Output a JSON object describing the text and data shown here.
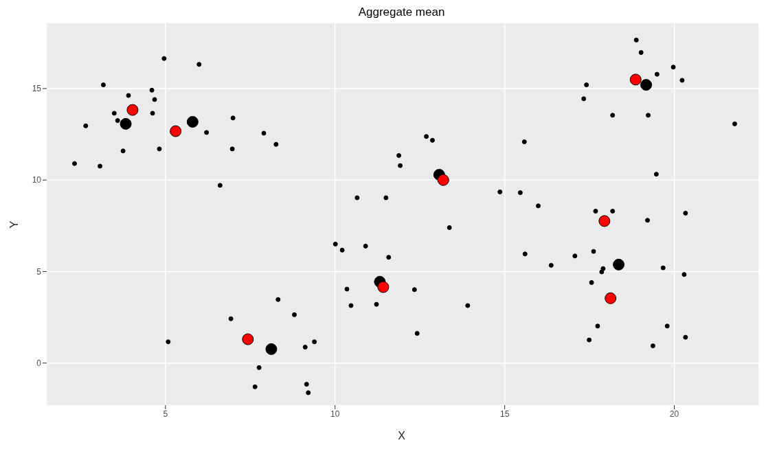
{
  "chart_data": {
    "type": "scatter",
    "title": "Aggregate mean",
    "xlabel": "X",
    "ylabel": "Y",
    "xlim": [
      1.5,
      22.5
    ],
    "ylim": [
      -2.3,
      18.6
    ],
    "xticks": [
      5,
      10,
      15,
      20
    ],
    "yticks": [
      0,
      5,
      10,
      15
    ],
    "grid": true,
    "legend": false,
    "marker": "circle",
    "series": [
      {
        "color": "#000000",
        "x": [
          2.32,
          2.65,
          3.17,
          3.07,
          3.49,
          3.59,
          3.75,
          3.91,
          4.6,
          4.68,
          4.62,
          4.82,
          4.96,
          5.99,
          6.21,
          6.99,
          6.97,
          6.61,
          7.9,
          8.26,
          5.08,
          6.93,
          7.76,
          7.64,
          8.32,
          8.8,
          9.12,
          9.16,
          9.21,
          9.39,
          10.01,
          10.21,
          10.9,
          10.35,
          10.47,
          10.65,
          11.22,
          11.5,
          11.58,
          11.88,
          11.92,
          12.34,
          12.42,
          12.69,
          12.87,
          13.37,
          13.91,
          14.86,
          15.46,
          15.58,
          15.6,
          15.99,
          16.37,
          17.07,
          17.33,
          17.41,
          17.49,
          17.56,
          17.62,
          17.68,
          17.74,
          17.86,
          17.9,
          18.18,
          18.18,
          18.88,
          19.02,
          19.21,
          19.23,
          19.47,
          19.49,
          19.37,
          19.67,
          19.79,
          19.97,
          20.23,
          20.29,
          20.33,
          20.33,
          21.78
        ],
        "values": [
          10.9,
          12.96,
          15.2,
          10.76,
          13.65,
          13.25,
          11.59,
          14.62,
          14.91,
          14.4,
          13.65,
          11.7,
          16.64,
          16.32,
          12.6,
          13.39,
          11.7,
          9.71,
          12.56,
          11.95,
          1.16,
          2.42,
          -0.25,
          -1.3,
          3.47,
          2.64,
          0.87,
          -1.16,
          -1.62,
          1.16,
          6.5,
          6.17,
          6.39,
          4.04,
          3.14,
          9.03,
          3.21,
          9.03,
          5.78,
          11.34,
          10.79,
          4.01,
          1.62,
          12.38,
          12.17,
          7.4,
          3.14,
          9.35,
          9.31,
          12.09,
          5.96,
          8.59,
          5.34,
          5.85,
          14.44,
          15.2,
          1.26,
          4.4,
          6.1,
          8.3,
          2.02,
          4.98,
          5.16,
          13.54,
          8.3,
          17.65,
          16.97,
          7.8,
          13.54,
          10.32,
          15.78,
          0.94,
          5.2,
          2.02,
          16.17,
          15.45,
          4.84,
          8.19,
          1.41,
          13.07
        ]
      },
      {
        "color": "#000000",
        "x": [
          3.83,
          5.8,
          13.07,
          11.32,
          8.12,
          18.36,
          19.17
        ],
        "values": [
          13.07,
          13.18,
          10.29,
          4.44,
          0.76,
          5.38,
          15.2
        ]
      },
      {
        "color": "#ff0000",
        "x": [
          4.03,
          5.3,
          13.19,
          11.42,
          7.43,
          17.94,
          18.12,
          18.86
        ],
        "values": [
          13.83,
          12.67,
          10.0,
          4.15,
          1.3,
          7.76,
          3.54,
          15.49
        ]
      }
    ]
  }
}
